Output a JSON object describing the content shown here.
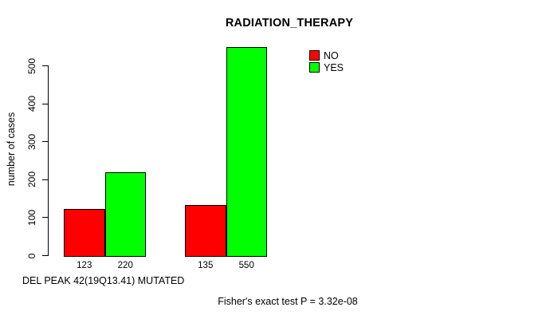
{
  "chart_data": {
    "type": "bar",
    "title": "RADIATION_THERAPY",
    "ylabel": "number of cases",
    "xlabel": "DEL PEAK 42(19Q13.41) MUTATED",
    "annotation": "Fisher's exact test P = 3.32e-08",
    "yticks": [
      0,
      100,
      200,
      300,
      400,
      500
    ],
    "ylim": [
      0,
      560
    ],
    "grid": false,
    "categories": [
      "",
      ""
    ],
    "series": [
      {
        "name": "NO",
        "color": "#ff0000",
        "values": [
          123,
          135
        ]
      },
      {
        "name": "YES",
        "color": "#00ff00",
        "values": [
          220,
          550
        ]
      }
    ],
    "bar_value_labels": [
      "123",
      "220",
      "135",
      "550"
    ],
    "legend": {
      "position": "top-right",
      "entries": [
        {
          "label": "NO",
          "color": "#ff0000"
        },
        {
          "label": "YES",
          "color": "#00ff00"
        }
      ]
    }
  }
}
